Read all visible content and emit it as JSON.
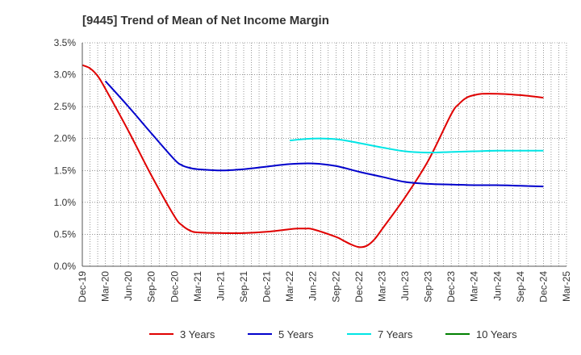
{
  "chart_data": {
    "type": "line",
    "title": "[9445]  Trend of Mean of Net Income Margin",
    "xlabel": "",
    "ylabel": "",
    "ylim": [
      0,
      3.5
    ],
    "y_unit": "%",
    "y_ticks": [
      "0.0%",
      "0.5%",
      "1.0%",
      "1.5%",
      "2.0%",
      "2.5%",
      "3.0%",
      "3.5%"
    ],
    "x_ticks": [
      "Dec-19",
      "Mar-20",
      "Jun-20",
      "Sep-20",
      "Dec-20",
      "Mar-21",
      "Jun-21",
      "Sep-21",
      "Dec-21",
      "Mar-22",
      "Jun-22",
      "Sep-22",
      "Dec-22",
      "Mar-23",
      "Jun-23",
      "Sep-23",
      "Dec-23",
      "Mar-24",
      "Jun-24",
      "Sep-24",
      "Dec-24",
      "Mar-25"
    ],
    "x_range": [
      "Dec-19",
      "Mar-25"
    ],
    "grid": true,
    "legend_position": "bottom",
    "series": [
      {
        "name": "3 Years",
        "color": "#e00000",
        "points": [
          [
            "Dec-19",
            3.15
          ],
          [
            "Jan-20",
            3.1
          ],
          [
            "Feb-20",
            2.98
          ],
          [
            "Mar-20",
            2.78
          ],
          [
            "Jun-20",
            2.12
          ],
          [
            "Sep-20",
            1.42
          ],
          [
            "Dec-20",
            0.78
          ],
          [
            "Jan-21",
            0.64
          ],
          [
            "Feb-21",
            0.56
          ],
          [
            "Mar-21",
            0.53
          ],
          [
            "Jun-21",
            0.52
          ],
          [
            "Sep-21",
            0.52
          ],
          [
            "Dec-21",
            0.54
          ],
          [
            "Mar-22",
            0.58
          ],
          [
            "Apr-22",
            0.59
          ],
          [
            "May-22",
            0.59
          ],
          [
            "Jun-22",
            0.58
          ],
          [
            "Sep-22",
            0.46
          ],
          [
            "Oct-22",
            0.4
          ],
          [
            "Nov-22",
            0.34
          ],
          [
            "Dec-22",
            0.3
          ],
          [
            "Jan-23",
            0.32
          ],
          [
            "Feb-23",
            0.42
          ],
          [
            "Mar-23",
            0.58
          ],
          [
            "Jun-23",
            1.08
          ],
          [
            "Sep-23",
            1.65
          ],
          [
            "Dec-23",
            2.38
          ],
          [
            "Jan-24",
            2.54
          ],
          [
            "Feb-24",
            2.64
          ],
          [
            "Mar-24",
            2.68
          ],
          [
            "Apr-24",
            2.7
          ],
          [
            "Jun-24",
            2.7
          ],
          [
            "Sep-24",
            2.68
          ],
          [
            "Dec-24",
            2.64
          ]
        ]
      },
      {
        "name": "5 Years",
        "color": "#0000cc",
        "points": [
          [
            "Mar-20",
            2.9
          ],
          [
            "Jun-20",
            2.5
          ],
          [
            "Sep-20",
            2.08
          ],
          [
            "Dec-20",
            1.67
          ],
          [
            "Jan-21",
            1.58
          ],
          [
            "Feb-21",
            1.54
          ],
          [
            "Mar-21",
            1.52
          ],
          [
            "Jun-21",
            1.5
          ],
          [
            "Sep-21",
            1.52
          ],
          [
            "Dec-21",
            1.56
          ],
          [
            "Mar-22",
            1.6
          ],
          [
            "Jun-22",
            1.61
          ],
          [
            "Sep-22",
            1.57
          ],
          [
            "Dec-22",
            1.48
          ],
          [
            "Mar-23",
            1.4
          ],
          [
            "Jun-23",
            1.32
          ],
          [
            "Sep-23",
            1.29
          ],
          [
            "Dec-23",
            1.28
          ],
          [
            "Mar-24",
            1.27
          ],
          [
            "Jun-24",
            1.27
          ],
          [
            "Sep-24",
            1.26
          ],
          [
            "Dec-24",
            1.25
          ]
        ]
      },
      {
        "name": "7 Years",
        "color": "#00e5e5",
        "points": [
          [
            "Mar-22",
            1.97
          ],
          [
            "Jun-22",
            2.0
          ],
          [
            "Sep-22",
            1.99
          ],
          [
            "Dec-22",
            1.93
          ],
          [
            "Mar-23",
            1.86
          ],
          [
            "Jun-23",
            1.8
          ],
          [
            "Sep-23",
            1.78
          ],
          [
            "Dec-23",
            1.79
          ],
          [
            "Mar-24",
            1.8
          ],
          [
            "Jun-24",
            1.81
          ],
          [
            "Sep-24",
            1.81
          ],
          [
            "Dec-24",
            1.81
          ]
        ]
      },
      {
        "name": "10 Years",
        "color": "#008000",
        "points": []
      }
    ]
  }
}
